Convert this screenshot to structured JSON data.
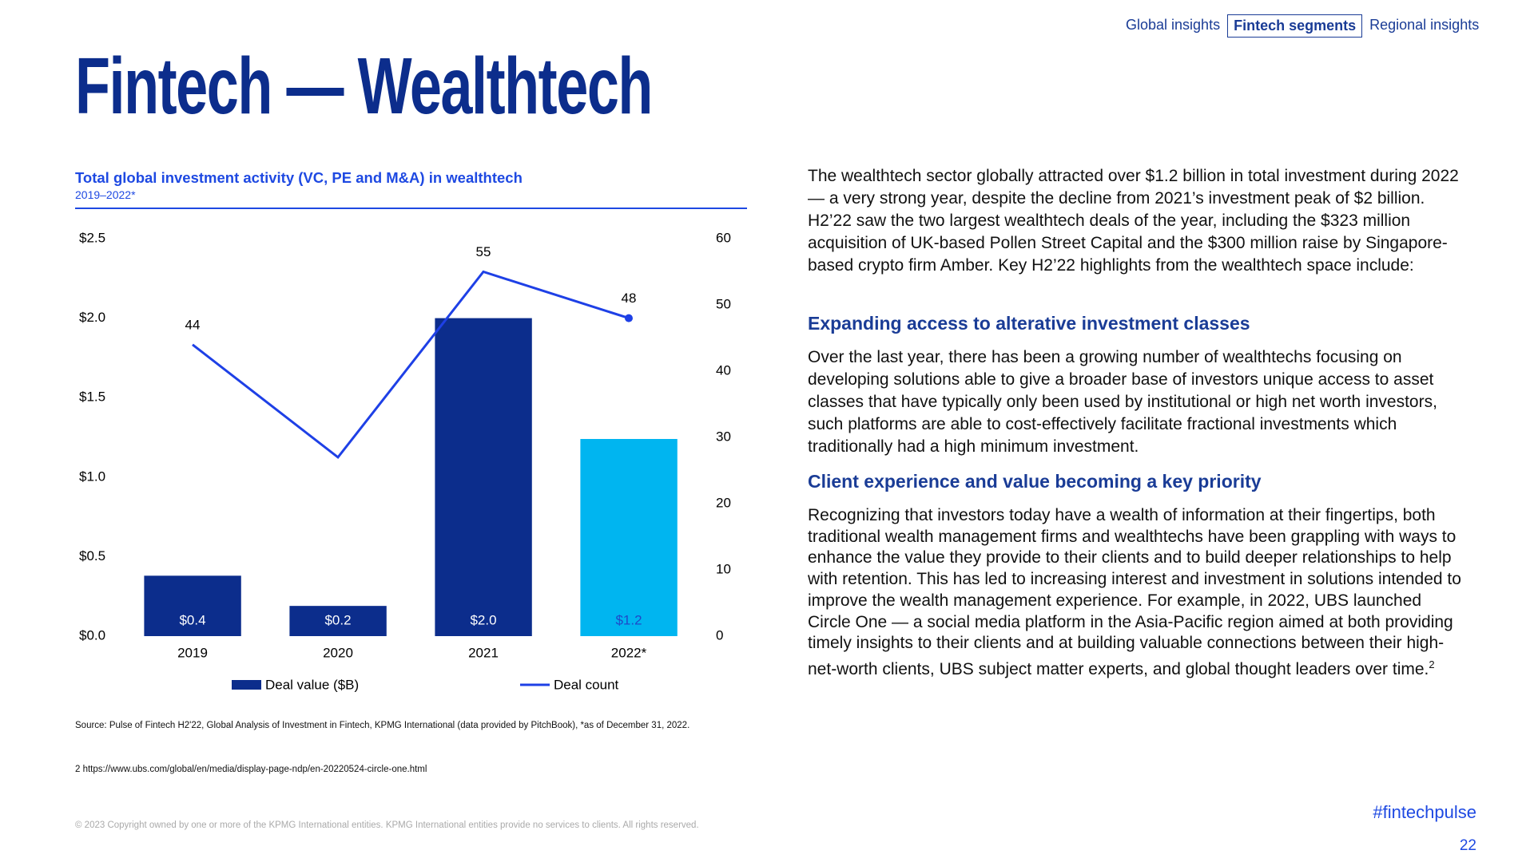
{
  "nav": [
    "Global insights",
    "Fintech segments",
    "Regional insights"
  ],
  "title": "Fintech — Wealthtech",
  "chart_data": {
    "type": "bar",
    "title": "Total global investment activity (VC, PE and M&A) in wealthtech",
    "subtitle": "2019–2022*",
    "categories": [
      "2019",
      "2020",
      "2021",
      "2022*"
    ],
    "series": [
      {
        "name": "Deal value ($B)",
        "type": "bar",
        "color": "#0c2d8c",
        "colors": [
          "#0c2d8c",
          "#0c2d8c",
          "#0c2d8c",
          "#00b5f0"
        ],
        "values": [
          0.38,
          0.19,
          2.0,
          1.24
        ],
        "value_labels": [
          "$0.4",
          "$0.2",
          "$2.0",
          "$1.2"
        ],
        "label_colors": [
          "#ffffff",
          "#ffffff",
          "#ffffff",
          "#1e49c9"
        ]
      },
      {
        "name": "Deal count",
        "type": "line",
        "axis": "y2",
        "color": "#1e40e6",
        "values": [
          44,
          27,
          55,
          48
        ],
        "value_labels": [
          "44",
          null,
          "55",
          "48"
        ]
      }
    ],
    "ylim": [
      0,
      2.5
    ],
    "yticks": [
      {
        "value": 0,
        "label": "$0.0"
      },
      {
        "value": 0.5,
        "label": "$0.5"
      },
      {
        "value": 1.0,
        "label": "$1.0"
      },
      {
        "value": 1.5,
        "label": "$1.5"
      },
      {
        "value": 2.0,
        "label": "$2.0"
      },
      {
        "value": 2.5,
        "label": "$2.5"
      }
    ],
    "y2lim": [
      0,
      60
    ],
    "y2ticks": [
      0,
      10,
      20,
      30,
      40,
      50,
      60
    ],
    "grid": false,
    "legend": "bottom"
  },
  "source": "Source: Pulse of Fintech H2'22, Global Analysis of Investment in Fintech, KPMG International (data provided by PitchBook), *as of December 31, 2022.",
  "footnote": "2 https://www.ubs.com/global/en/media/display-page-ndp/en-20220524-circle-one.html",
  "copyright": "© 2023 Copyright owned by one or more of the KPMG International entities. KPMG International entities provide no services to clients. All rights reserved.",
  "body": {
    "intro": "The wealthtech sector globally attracted over $1.2 billion in total investment during 2022 — a very strong year, despite the decline from 2021’s investment peak of $2 billion. H2’22 saw the two largest wealthtech deals of the year, including the $323 million acquisition of UK-based Pollen Street Capital and the $300 million raise by Singapore-based crypto firm Amber. Key H2’22 highlights from the wealthtech space include:",
    "sections": [
      {
        "heading": "Expanding access to alterative investment classes",
        "text": "Over the last year, there has been a growing number of wealthtechs focusing on developing solutions able to give a broader base of investors unique access to asset classes that have typically only been used by institutional or high net worth investors, such platforms are able to cost-effectively facilitate fractional investments which traditionally had a high minimum investment."
      },
      {
        "heading": "Client experience and value becoming a key priority",
        "text": "Recognizing that investors today have a wealth of information at their fingertips, both traditional wealth management firms and wealthtechs have been grappling with ways to enhance the value they provide to their clients and to build deeper relationships to help with retention. This has led to increasing interest and investment in solutions intended to improve the wealth management experience. For example, in 2022, UBS launched Circle One — a social media platform in the Asia-Pacific region aimed at both providing timely insights to their clients and at building valuable connections between their high-net-worth clients, UBS subject matter experts, and global thought leaders over time.",
        "note_ref": "2"
      }
    ]
  },
  "hashtag": "#fintechpulse",
  "page_number": "22"
}
